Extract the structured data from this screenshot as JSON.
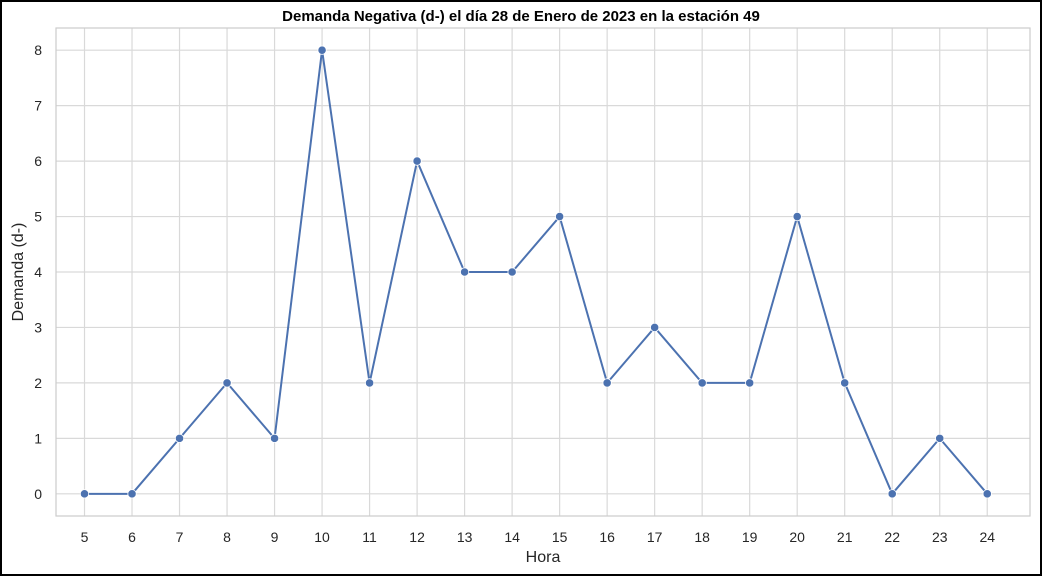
{
  "chart_data": {
    "type": "line",
    "title": "Demanda Negativa (d-) el día 28 de Enero de 2023 en la estación 49",
    "xlabel": "Hora",
    "ylabel": "Demanda (d-)",
    "x": [
      5,
      6,
      7,
      8,
      9,
      10,
      11,
      12,
      13,
      14,
      15,
      16,
      17,
      18,
      19,
      20,
      21,
      22,
      23,
      24
    ],
    "series": [
      {
        "values": [
          0,
          0,
          1,
          2,
          1,
          8,
          2,
          6,
          4,
          4,
          5,
          2,
          3,
          2,
          2,
          5,
          2,
          0,
          1,
          0
        ]
      }
    ],
    "xticks": [
      "5",
      "6",
      "7",
      "8",
      "9",
      "10",
      "11",
      "12",
      "13",
      "14",
      "15",
      "16",
      "17",
      "18",
      "19",
      "20",
      "21",
      "22",
      "23",
      "24"
    ],
    "yticks": [
      "0",
      "1",
      "2",
      "3",
      "4",
      "5",
      "6",
      "7",
      "8"
    ],
    "xlim": [
      4.4,
      24.9
    ],
    "ylim": [
      -0.4,
      8.4
    ],
    "grid": true,
    "line_color": "#4c72b0",
    "grid_color": "#d9d9d9",
    "spine_color": "#cccccc"
  }
}
